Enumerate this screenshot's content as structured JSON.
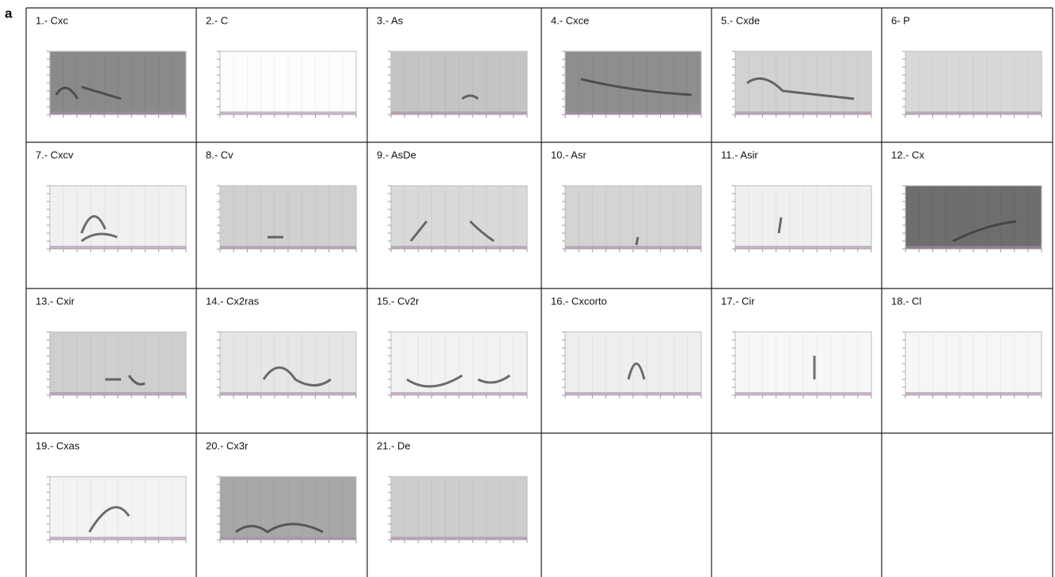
{
  "panel_label": "a",
  "cells": [
    {
      "label": "1.- Cxc"
    },
    {
      "label": "2.- C"
    },
    {
      "label": "3.- As"
    },
    {
      "label": "4.- Cxce"
    },
    {
      "label": "5.- Cxde"
    },
    {
      "label": "6- P"
    },
    {
      "label": "7.- Cxcv"
    },
    {
      "label": "8.- Cv"
    },
    {
      "label": "9.- AsDe"
    },
    {
      "label": "10.- Asr"
    },
    {
      "label": "11.- Asir"
    },
    {
      "label": "12.- Cx"
    },
    {
      "label": "13.- Cxir"
    },
    {
      "label": "14.- Cx2ras"
    },
    {
      "label": "15.- Cv2r"
    },
    {
      "label": "16.- Cxcorto"
    },
    {
      "label": "17.- Cir"
    },
    {
      "label": "18.- Cl"
    },
    {
      "label": "19.- Cxas"
    },
    {
      "label": "20.- Cx3r"
    },
    {
      "label": "21.- De"
    }
  ]
}
